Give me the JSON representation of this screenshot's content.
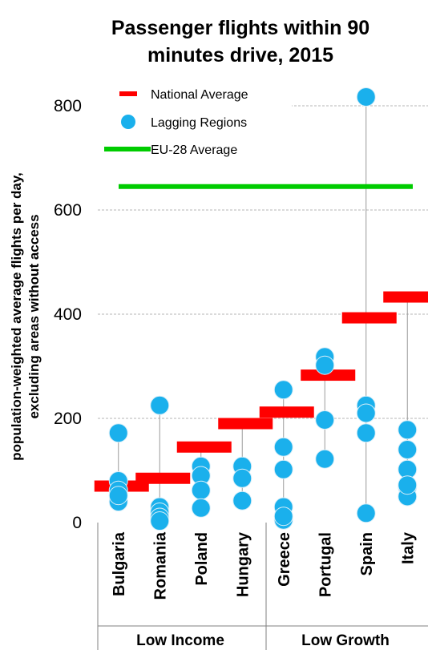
{
  "chart_data": {
    "type": "scatter",
    "title_lines": [
      "Passenger flights within 90",
      "minutes drive, 2015"
    ],
    "ylabel_lines": [
      "population-weighted  average flights per day,",
      "excluding areas without access"
    ],
    "yticks": [
      0,
      200,
      400,
      600,
      800
    ],
    "ylim": [
      0,
      800
    ],
    "grid": true,
    "categories": [
      "Bulgaria",
      "Romania",
      "Poland",
      "Hungary",
      "Greece",
      "Portugal",
      "Spain",
      "Italy"
    ],
    "groups": [
      {
        "label": "Low Income",
        "categories": [
          "Bulgaria",
          "Romania",
          "Poland",
          "Hungary"
        ]
      },
      {
        "label": "Low Growth",
        "categories": [
          "Greece",
          "Portugal",
          "Spain",
          "Italy"
        ]
      }
    ],
    "legend": {
      "placement": "top-left",
      "entries": [
        "National  Average",
        "Lagging  Regions",
        "EU-28  Average"
      ]
    },
    "series": [
      {
        "name": "National  Average",
        "style": "bar-marker",
        "color": "#ff0000",
        "values": [
          70,
          85,
          145,
          190,
          212,
          283,
          393,
          433
        ]
      },
      {
        "name": "Lagging  Regions",
        "style": "dots",
        "color": "#1ab0ec",
        "values": [
          [
            172,
            80,
            62,
            40,
            52
          ],
          [
            225,
            30,
            20,
            10,
            3
          ],
          [
            108,
            90,
            62,
            28
          ],
          [
            108,
            85,
            42
          ],
          [
            255,
            145,
            102,
            30,
            5,
            12
          ],
          [
            318,
            302,
            197,
            122
          ],
          [
            817,
            225,
            210,
            172,
            18
          ],
          [
            178,
            140,
            102,
            68,
            50,
            72
          ]
        ]
      },
      {
        "name": "EU-28  Average",
        "style": "line",
        "color": "#00cc00",
        "value": 645
      }
    ]
  }
}
